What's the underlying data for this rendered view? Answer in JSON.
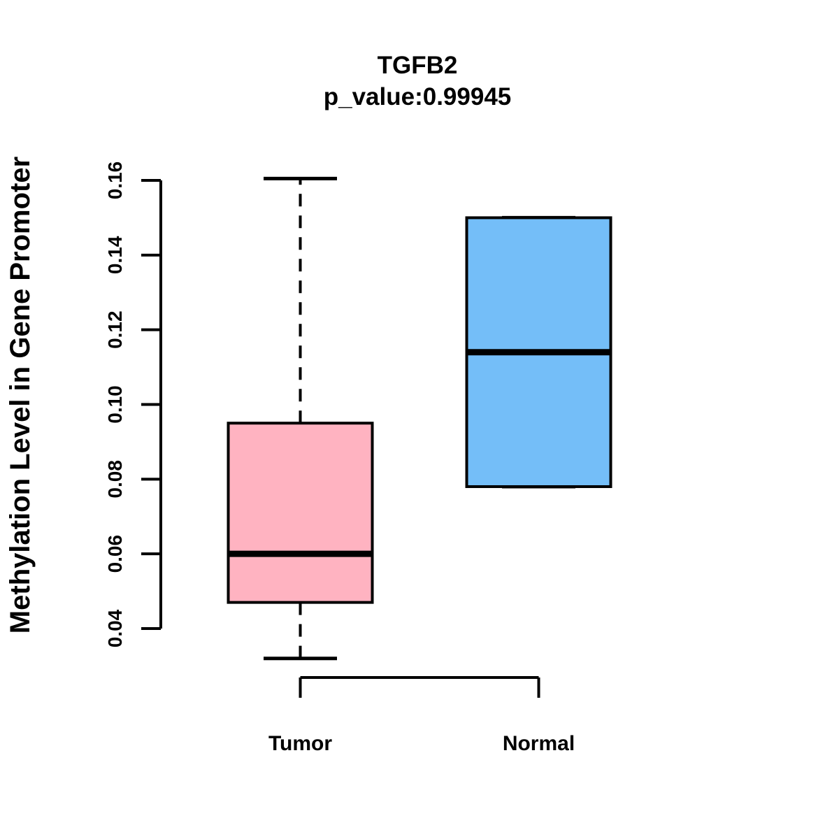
{
  "figure": {
    "title": "TGFB2",
    "subtitle": "p_value:0.99945"
  },
  "y_axis": {
    "label": "Methylation Level in Gene Promoter",
    "tick_labels": [
      "0.04",
      "0.06",
      "0.08",
      "0.10",
      "0.12",
      "0.14",
      "0.16"
    ]
  },
  "x_axis": {
    "labels": [
      "Tumor",
      "Normal"
    ]
  },
  "colors": {
    "tumor_fill": "#FFB3C1",
    "normal_fill": "#74BEF8",
    "stroke": "#000000",
    "background": "#FFFFFF"
  },
  "chart_data": {
    "type": "boxplot",
    "title": "TGFB2",
    "subtitle": "p_value:0.99945",
    "xlabel": "",
    "ylabel": "Methylation Level in Gene Promoter",
    "ylim": [
      0.04,
      0.16
    ],
    "y_ticks": [
      0.04,
      0.06,
      0.08,
      0.1,
      0.12,
      0.14,
      0.16
    ],
    "grid": false,
    "legend": "none",
    "categories": [
      "Tumor",
      "Normal"
    ],
    "series": [
      {
        "name": "Tumor",
        "fill_color": "#FFB3C1",
        "whisker_low": 0.032,
        "q1": 0.047,
        "median": 0.06,
        "q3": 0.095,
        "whisker_high": 0.1605
      },
      {
        "name": "Normal",
        "fill_color": "#74BEF8",
        "whisker_low": 0.078,
        "q1": 0.078,
        "median": 0.114,
        "q3": 0.15,
        "whisker_high": 0.15
      }
    ]
  }
}
